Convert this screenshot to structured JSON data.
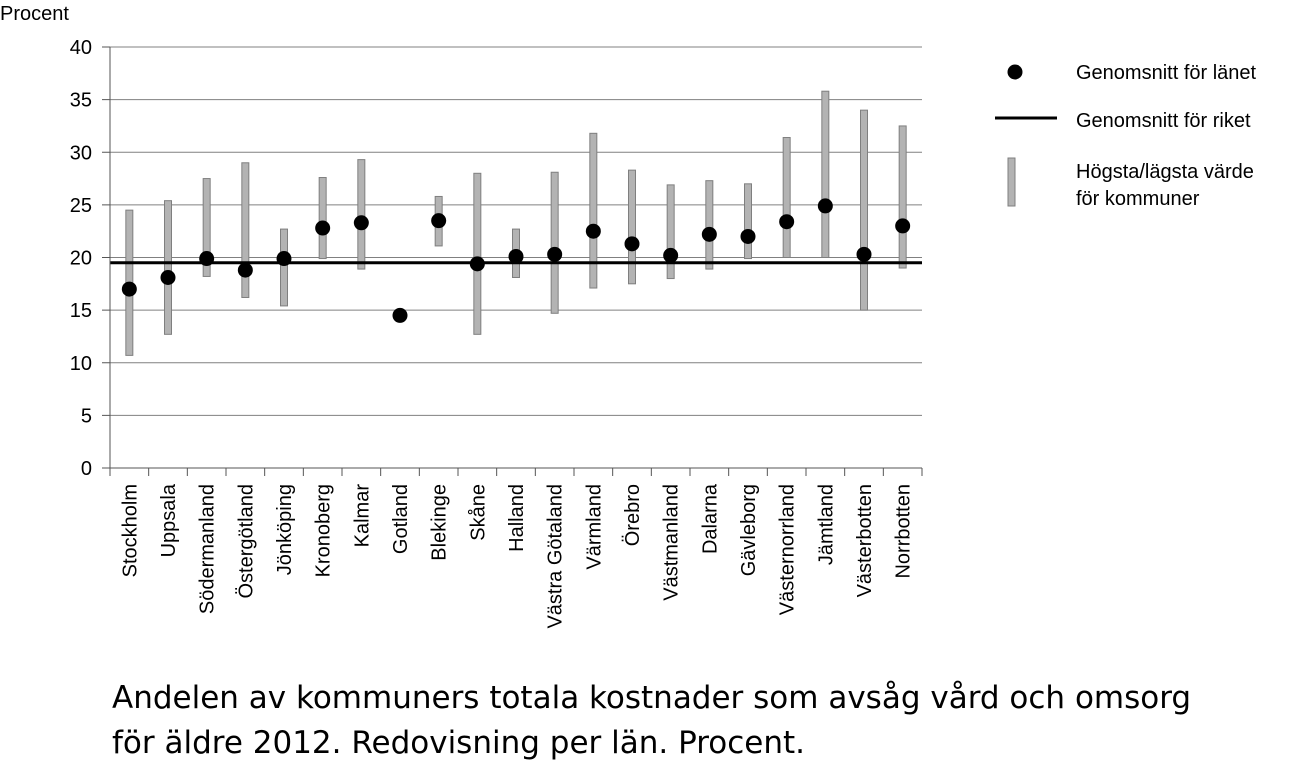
{
  "chart_data": {
    "type": "scatter",
    "ylabel": "Procent",
    "ylim": [
      0,
      40
    ],
    "yticks": [
      "0",
      "5",
      "10",
      "15",
      "20",
      "25",
      "30",
      "35",
      "40"
    ],
    "grid": true,
    "legend_position": "right",
    "legend": {
      "mean_county": "Genomsnitt för länet",
      "mean_country": "Genomsnitt för riket",
      "range_line1": "Högsta/lägsta värde",
      "range_line2": "för kommuner"
    },
    "national_average": 19.5,
    "categories": [
      "Stockholm",
      "Uppsala",
      "Södermanland",
      "Östergötland",
      "Jönköping",
      "Kronoberg",
      "Kalmar",
      "Gotland",
      "Blekinge",
      "Skåne",
      "Halland",
      "Västra Götaland",
      "Värmland",
      "Örebro",
      "Västmanland",
      "Dalarna",
      "Gävleborg",
      "Västernorrland",
      "Jämtland",
      "Västerbotten",
      "Norrbotten"
    ],
    "series": [
      {
        "name": "Genomsnitt för länet",
        "values": [
          17.0,
          18.1,
          19.9,
          18.8,
          19.9,
          22.8,
          23.3,
          14.5,
          23.5,
          19.4,
          20.1,
          20.3,
          22.5,
          21.3,
          20.2,
          22.2,
          22.0,
          23.4,
          24.9,
          20.3,
          23.0
        ]
      },
      {
        "name": "Högsta/lägsta värde för kommuner",
        "low": [
          10.7,
          12.7,
          18.2,
          16.2,
          15.4,
          19.9,
          18.9,
          null,
          21.1,
          12.7,
          18.1,
          14.7,
          17.1,
          17.5,
          18.0,
          18.9,
          19.9,
          20.0,
          20.0,
          15.0,
          19.0
        ],
        "high": [
          24.5,
          25.4,
          27.5,
          29.0,
          22.7,
          27.6,
          29.3,
          null,
          25.8,
          28.0,
          22.7,
          28.1,
          31.8,
          28.3,
          26.9,
          27.3,
          27.0,
          31.4,
          35.8,
          34.0,
          32.5
        ]
      }
    ]
  },
  "caption": {
    "line1": "Andelen av kommuners totala kostnader som avsåg vård och omsorg",
    "line2": "för äldre 2012. Redovisning per län. Procent."
  },
  "colors": {
    "range_fill": "#b3b3b3",
    "range_stroke": "#7f7f7f",
    "dot": "#000000",
    "national_line": "#000000",
    "grid": "#808080"
  }
}
